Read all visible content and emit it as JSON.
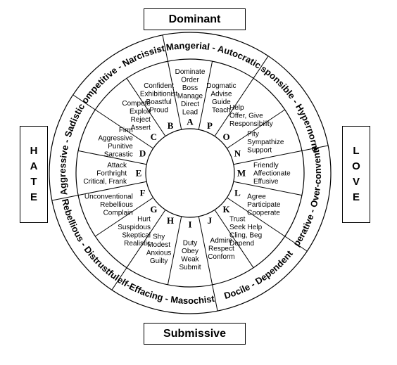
{
  "poles": {
    "top": "Dominant",
    "bottom": "Submissive",
    "left": "HATE",
    "right": "LOVE"
  },
  "octants": [
    "Mangerial - Autocratic",
    "Responsible - Hypernormal",
    "Cooperative - Over-conventional",
    "Docile - Dependent",
    "Self-Effacing - Masochistic",
    "Rebellious - Distrustful",
    "Aggressive - Sadistic",
    "Competitive - Narcissistic"
  ],
  "segments": [
    {
      "letter": "A",
      "words": [
        "Dominate",
        "Order",
        "Boss",
        "Manage",
        "Direct",
        "Lead"
      ]
    },
    {
      "letter": "P",
      "words": [
        "Dogmatic",
        "Advise",
        "Guide",
        "Teach"
      ]
    },
    {
      "letter": "O",
      "words": [
        "Help",
        "Offer, Give",
        "Responsibility"
      ]
    },
    {
      "letter": "N",
      "words": [
        "Pity",
        "Sympathize",
        "Support"
      ]
    },
    {
      "letter": "M",
      "words": [
        "Friendly",
        "Affectionate",
        "Effusive"
      ]
    },
    {
      "letter": "L",
      "words": [
        "Agree",
        "Participate",
        "Cooperate"
      ]
    },
    {
      "letter": "K",
      "words": [
        "Trust",
        "Seek Help",
        "Cling, Beg",
        "Depend"
      ]
    },
    {
      "letter": "J",
      "words": [
        "Admire",
        "Respect",
        "Conform"
      ]
    },
    {
      "letter": "I",
      "words": [
        "Duty",
        "Obey",
        "Weak",
        "Submit"
      ]
    },
    {
      "letter": "H",
      "words": [
        "Shy",
        "Modest",
        "Anxious",
        "Guilty"
      ]
    },
    {
      "letter": "G",
      "words": [
        "Hurt",
        "Suspidous",
        "Skeptical",
        "Realistic"
      ]
    },
    {
      "letter": "F",
      "words": [
        "Unconventional",
        "Rebellious",
        "Complain"
      ]
    },
    {
      "letter": "E",
      "words": [
        "Attack",
        "Forthright",
        "Critical, Frank"
      ]
    },
    {
      "letter": "D",
      "words": [
        "Firm",
        "Aggressive",
        "Punitive",
        "Sarcastic"
      ]
    },
    {
      "letter": "C",
      "words": [
        "Compete",
        "Exploit",
        "Reject",
        "Assert"
      ]
    },
    {
      "letter": "B",
      "words": [
        "Confident",
        "Exhibitionist",
        "Boastful",
        "Proud"
      ]
    }
  ]
}
